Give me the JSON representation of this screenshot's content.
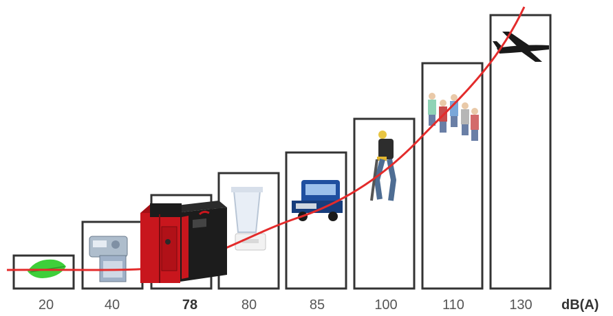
{
  "chart_data": {
    "type": "bar",
    "categories": [
      "20",
      "40",
      "78",
      "80",
      "85",
      "100",
      "110",
      "130"
    ],
    "values": [
      20,
      40,
      78,
      80,
      85,
      100,
      110,
      130
    ],
    "highlight_index": 2,
    "unit_label": "dB(A)",
    "icons": [
      "leaf-icon",
      "printer-icon",
      "compressor-icon",
      "blender-icon",
      "truck-icon",
      "jackhammer-worker-icon",
      "crowd-icon",
      "airplane-icon"
    ],
    "curve": "exponential",
    "grid": false
  },
  "colors": {
    "bar_stroke": "#333333",
    "curve": "#e32b2b",
    "compressor_body": "#c8161d",
    "compressor_panel": "#1c1c1c",
    "truck": "#1f4fa0",
    "leaf": "#3ecf3a"
  }
}
